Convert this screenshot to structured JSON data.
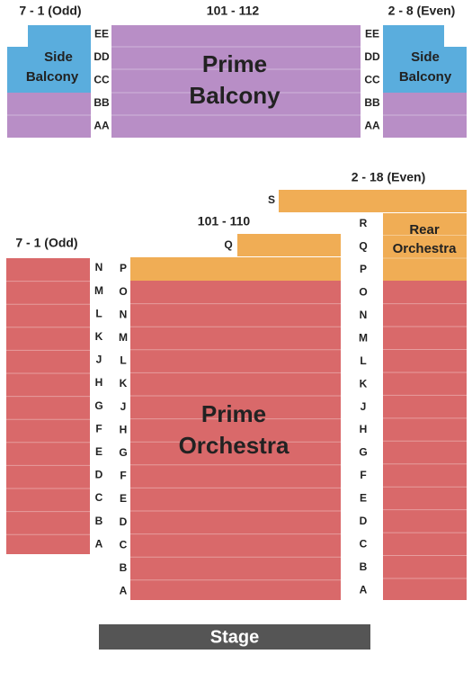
{
  "balcony": {
    "left_range": "7 - 1 (Odd)",
    "center_range": "101 - 112",
    "right_range": "2 - 8 (Even)",
    "left_section": [
      "Side",
      "Balcony"
    ],
    "right_section": [
      "Side",
      "Balcony"
    ],
    "center_section": [
      "Prime",
      "Balcony"
    ],
    "left_rows": [
      "EE",
      "DD",
      "CC",
      "BB",
      "AA"
    ],
    "right_rows": [
      "EE",
      "DD",
      "CC",
      "BB",
      "AA"
    ]
  },
  "orchestra": {
    "left_range": "7 - 1 (Odd)",
    "center_range": "101 - 110",
    "right_range": "2 - 18 (Even)",
    "center_section": [
      "Prime",
      "Orchestra"
    ],
    "right_section": [
      "Rear",
      "Orchestra"
    ],
    "left_rows": [
      "N",
      "M",
      "L",
      "K",
      "J",
      "H",
      "G",
      "F",
      "E",
      "D",
      "C",
      "B",
      "A"
    ],
    "center_q_row": "Q",
    "center_rows": [
      "P",
      "O",
      "N",
      "M",
      "L",
      "K",
      "J",
      "H",
      "G",
      "F",
      "E",
      "D",
      "C",
      "B",
      "A"
    ],
    "s_row": "S",
    "right_rows": [
      "R",
      "Q",
      "P",
      "O",
      "N",
      "M",
      "L",
      "K",
      "J",
      "H",
      "G",
      "F",
      "E",
      "D",
      "C",
      "B",
      "A"
    ]
  },
  "stage": "Stage"
}
